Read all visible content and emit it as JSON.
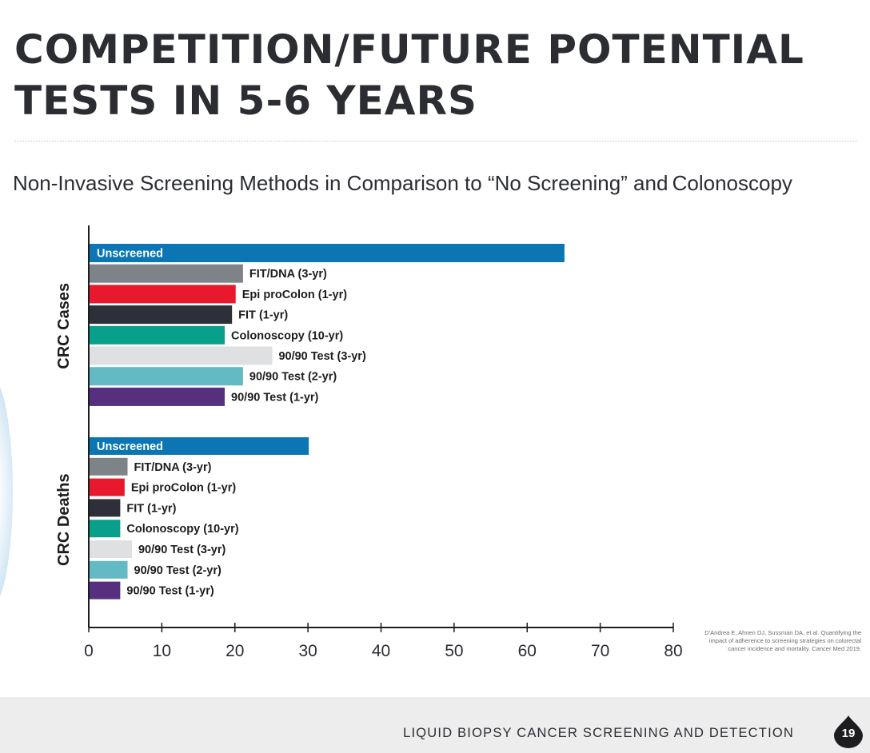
{
  "slide": {
    "title": "COMPETITION/FUTURE POTENTIAL\nTESTS IN 5-6 YEARS",
    "subtitle": "Non-Invasive Screening Methods in Comparison to “No Screening” and Colonoscopy",
    "citation": "D'Andrea E, Ahnen DJ, Sussman DA, et al. Quantifying the impact of adherence to screening strategies on colorectal cancer incidence and mortality. Cancer Med 2019.",
    "footer_text": "LIQUID BIOPSY CANCER SCREENING AND DETECTION",
    "page_number": "19"
  },
  "chart_data": {
    "type": "bar",
    "orientation": "horizontal",
    "title": "Non-Invasive Screening Methods in Comparison to “No Screening” and Colonoscopy",
    "xlabel": "",
    "xlim": [
      0,
      80
    ],
    "xticks": [
      0,
      10,
      20,
      30,
      40,
      50,
      60,
      70,
      80
    ],
    "grid": false,
    "series_colors": {
      "Unscreened": "#0b76b3",
      "FIT/DNA (3-yr)": "#7d8387",
      "Epi proColon (1-yr)": "#e8192c",
      "FIT (1-yr)": "#2d3038",
      "Colonoscopy (10-yr)": "#08a08a",
      "90/90 Test (3-yr)": "#dfe0e1",
      "90/90 Test (2-yr)": "#63b9c4",
      "90/90 Test (1-yr)": "#56307f"
    },
    "groups": [
      {
        "name": "CRC Cases",
        "bars": [
          {
            "label": "Unscreened",
            "value": 65
          },
          {
            "label": "FIT/DNA (3-yr)",
            "value": 21
          },
          {
            "label": "Epi proColon (1-yr)",
            "value": 20
          },
          {
            "label": "FIT (1-yr)",
            "value": 19.5
          },
          {
            "label": "Colonoscopy (10-yr)",
            "value": 18.5
          },
          {
            "label": "90/90 Test (3-yr)",
            "value": 25
          },
          {
            "label": "90/90 Test (2-yr)",
            "value": 21
          },
          {
            "label": "90/90 Test (1-yr)",
            "value": 18.5
          }
        ]
      },
      {
        "name": "CRC Deaths",
        "bars": [
          {
            "label": "Unscreened",
            "value": 30
          },
          {
            "label": "FIT/DNA (3-yr)",
            "value": 5.2
          },
          {
            "label": "Epi proColon (1-yr)",
            "value": 4.8
          },
          {
            "label": "FIT (1-yr)",
            "value": 4.2
          },
          {
            "label": "Colonoscopy (10-yr)",
            "value": 4.2
          },
          {
            "label": "90/90 Test (3-yr)",
            "value": 5.8
          },
          {
            "label": "90/90 Test (2-yr)",
            "value": 5.2
          },
          {
            "label": "90/90 Test (1-yr)",
            "value": 4.2
          }
        ]
      }
    ]
  }
}
